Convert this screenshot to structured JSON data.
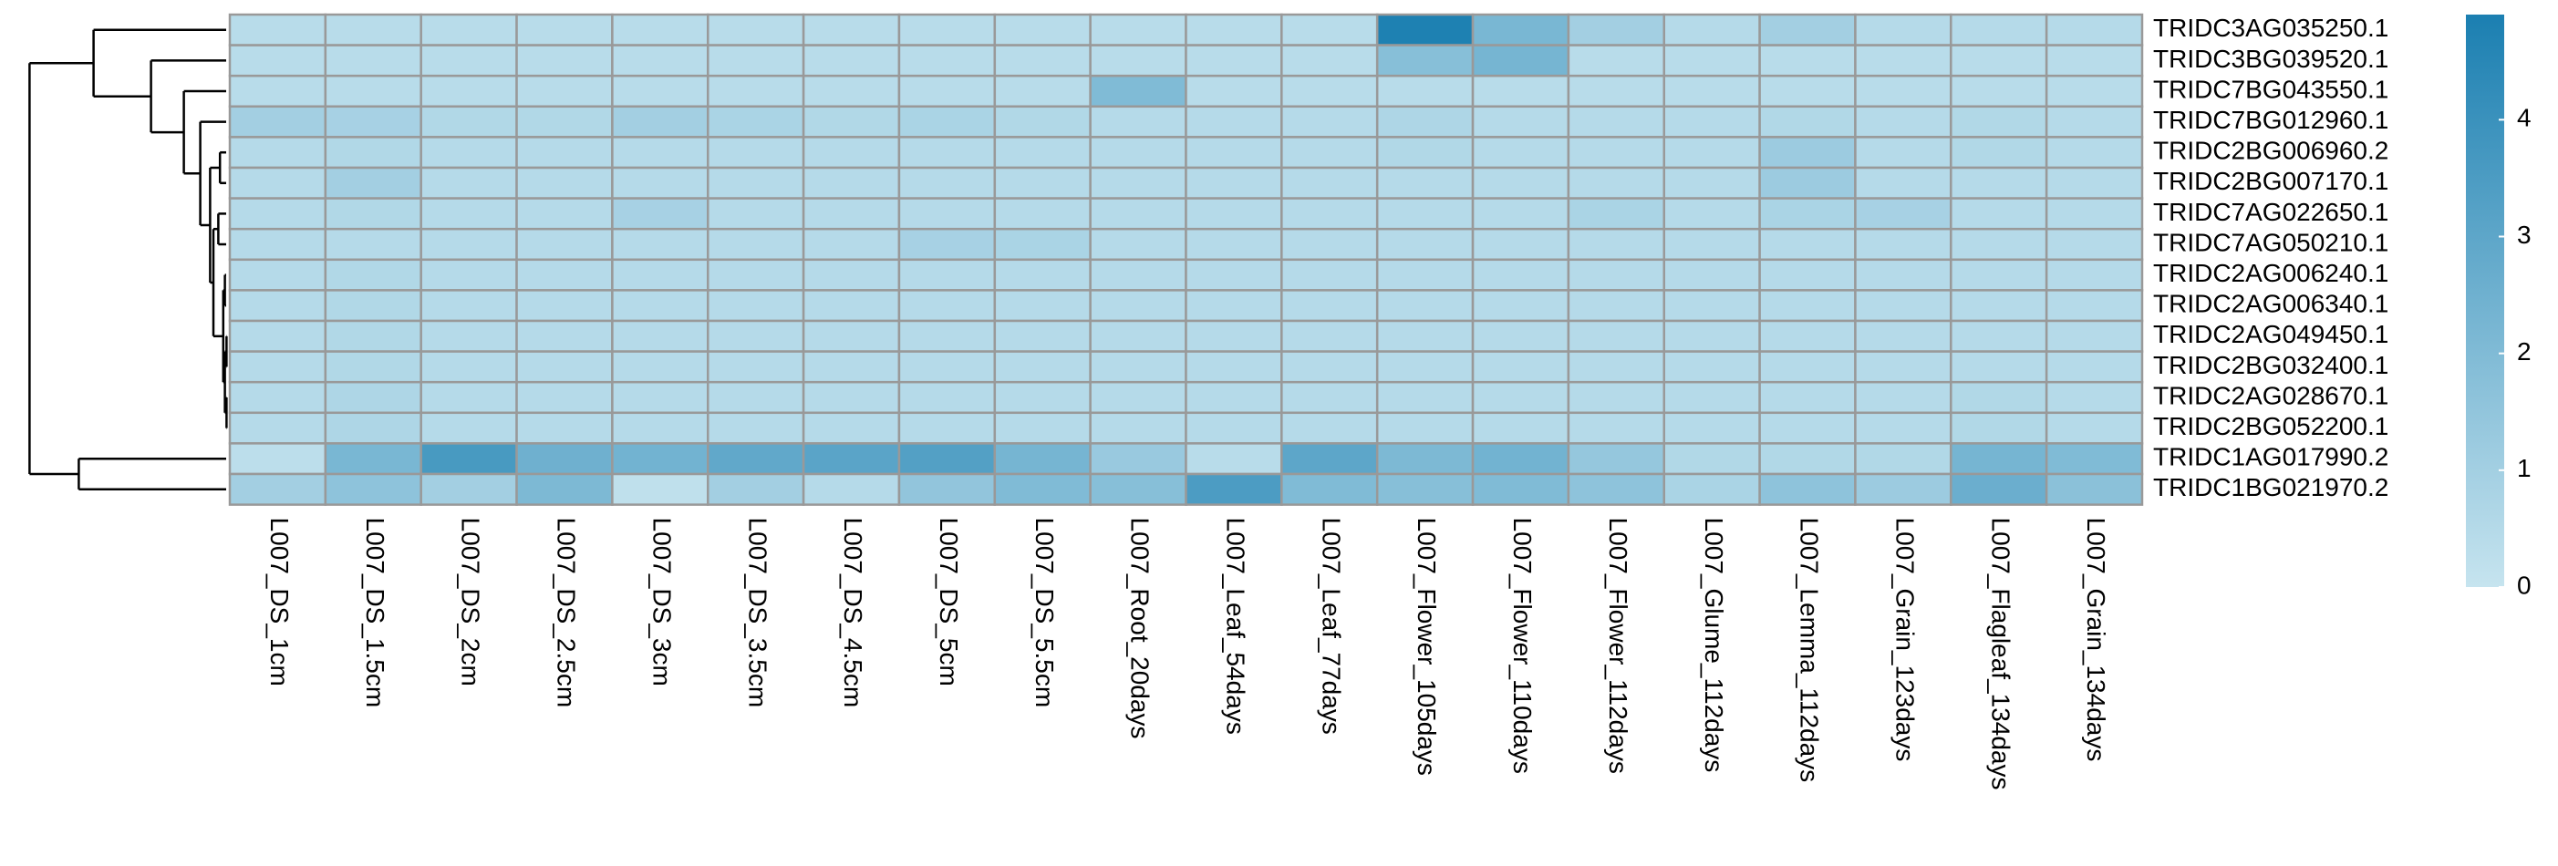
{
  "chart_data": {
    "type": "heatmap",
    "rows": [
      "TRIDC3AG035250.1",
      "TRIDC3BG039520.1",
      "TRIDC7BG043550.1",
      "TRIDC7BG012960.1",
      "TRIDC2BG006960.2",
      "TRIDC2BG007170.1",
      "TRIDC7AG022650.1",
      "TRIDC7AG050210.1",
      "TRIDC2AG006240.1",
      "TRIDC2AG006340.1",
      "TRIDC2AG049450.1",
      "TRIDC2BG032400.1",
      "TRIDC2AG028670.1",
      "TRIDC2BG052200.1",
      "TRIDC1AG017990.2",
      "TRIDC1BG021970.2"
    ],
    "columns": [
      "L007_DS_1cm",
      "L007_DS_1.5cm",
      "L007_DS_2cm",
      "L007_DS_2.5cm",
      "L007_DS_3cm",
      "L007_DS_3.5cm",
      "L007_DS_4.5cm",
      "L007_DS_5cm",
      "L007_DS_5.5cm",
      "L007_Root_20days",
      "L007_Leaf_54days",
      "L007_Leaf_77days",
      "L007_Flower_105days",
      "L007_Flower_110days",
      "L007_Flower_112days",
      "L007_Glume_112days",
      "L007_Lemma_112days",
      "L007_Grain_123days",
      "L007_Flagleaf_134days",
      "L007_Grain_134days"
    ],
    "values": [
      [
        0.4,
        0.4,
        0.4,
        0.4,
        0.4,
        0.4,
        0.4,
        0.4,
        0.4,
        0.4,
        0.4,
        0.4,
        4.8,
        2.2,
        1.0,
        0.5,
        1.0,
        0.5,
        0.5,
        0.5
      ],
      [
        0.4,
        0.4,
        0.4,
        0.4,
        0.4,
        0.4,
        0.4,
        0.4,
        0.4,
        0.4,
        0.4,
        0.4,
        1.8,
        2.3,
        0.4,
        0.4,
        0.4,
        0.4,
        0.4,
        0.4
      ],
      [
        0.4,
        0.4,
        0.4,
        0.4,
        0.4,
        0.4,
        0.4,
        0.4,
        0.4,
        2.0,
        0.4,
        0.4,
        0.4,
        0.4,
        0.4,
        0.4,
        0.4,
        0.4,
        0.4,
        0.4
      ],
      [
        1.0,
        0.9,
        0.6,
        0.6,
        1.0,
        0.8,
        0.6,
        0.8,
        0.6,
        0.5,
        0.5,
        0.5,
        0.7,
        0.5,
        0.5,
        0.5,
        0.6,
        0.5,
        0.6,
        0.5
      ],
      [
        0.5,
        0.6,
        0.5,
        0.5,
        0.5,
        0.5,
        0.5,
        0.5,
        0.5,
        0.5,
        0.5,
        0.5,
        0.6,
        0.5,
        0.5,
        0.5,
        1.2,
        0.5,
        0.6,
        0.5
      ],
      [
        0.5,
        1.0,
        0.5,
        0.5,
        0.5,
        0.5,
        0.5,
        0.5,
        0.5,
        0.5,
        0.5,
        0.5,
        0.5,
        0.5,
        0.5,
        0.5,
        1.2,
        0.5,
        0.5,
        0.5
      ],
      [
        0.5,
        0.6,
        0.5,
        0.5,
        0.9,
        0.5,
        0.5,
        0.5,
        0.5,
        0.5,
        0.5,
        0.5,
        0.5,
        0.5,
        0.8,
        0.5,
        0.8,
        0.9,
        0.5,
        0.5
      ],
      [
        0.5,
        0.5,
        0.5,
        0.5,
        0.5,
        0.5,
        0.5,
        0.9,
        0.8,
        0.5,
        0.5,
        0.5,
        0.5,
        0.5,
        0.5,
        0.5,
        0.5,
        0.5,
        0.5,
        0.5
      ],
      [
        0.5,
        0.6,
        0.5,
        0.5,
        0.5,
        0.5,
        0.5,
        0.5,
        0.5,
        0.5,
        0.5,
        0.5,
        0.5,
        0.5,
        0.5,
        0.5,
        0.5,
        0.5,
        0.5,
        0.5
      ],
      [
        0.5,
        0.6,
        0.5,
        0.5,
        0.5,
        0.5,
        0.5,
        0.5,
        0.5,
        0.5,
        0.5,
        0.5,
        0.5,
        0.5,
        0.5,
        0.5,
        0.5,
        0.5,
        0.5,
        0.5
      ],
      [
        0.5,
        0.6,
        0.5,
        0.5,
        0.5,
        0.5,
        0.5,
        0.5,
        0.5,
        0.5,
        0.5,
        0.5,
        0.5,
        0.5,
        0.5,
        0.5,
        0.5,
        0.5,
        0.5,
        0.5
      ],
      [
        0.5,
        0.6,
        0.5,
        0.5,
        0.5,
        0.5,
        0.5,
        0.5,
        0.5,
        0.5,
        0.5,
        0.5,
        0.5,
        0.5,
        0.5,
        0.5,
        0.5,
        0.5,
        0.5,
        0.5
      ],
      [
        0.5,
        0.7,
        0.5,
        0.5,
        0.5,
        0.5,
        0.5,
        0.5,
        0.5,
        0.5,
        0.5,
        0.5,
        0.5,
        0.5,
        0.5,
        0.5,
        0.5,
        0.5,
        0.6,
        0.5
      ],
      [
        0.5,
        0.7,
        0.5,
        0.5,
        0.5,
        0.5,
        0.5,
        0.5,
        0.5,
        0.5,
        0.5,
        0.5,
        0.5,
        0.5,
        0.5,
        0.5,
        0.5,
        0.5,
        0.6,
        0.5
      ],
      [
        0.3,
        2.2,
        3.6,
        2.5,
        2.4,
        2.9,
        3.1,
        3.3,
        2.3,
        1.3,
        0.4,
        3.0,
        2.1,
        2.4,
        1.4,
        0.6,
        0.6,
        0.6,
        2.3,
        2.0
      ],
      [
        1.0,
        1.6,
        1.0,
        2.1,
        0.2,
        1.0,
        0.5,
        1.5,
        2.0,
        1.8,
        3.5,
        2.0,
        1.8,
        2.0,
        1.6,
        0.8,
        1.6,
        1.2,
        2.6,
        1.7
      ]
    ],
    "clim": [
      0,
      4.9
    ],
    "cticks": [
      0,
      1,
      2,
      3,
      4
    ],
    "color_low": "#c6e4ef",
    "color_high": "#1b7fb1",
    "cell_border": "#999999"
  }
}
